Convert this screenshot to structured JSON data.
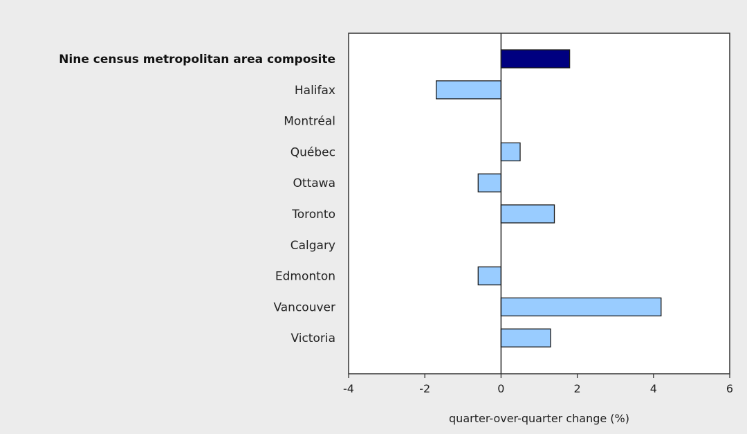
{
  "chart_data": {
    "type": "bar",
    "orientation": "horizontal",
    "categories": [
      "Nine census metropolitan area composite",
      "Halifax",
      "Montréal",
      "Québec",
      "Ottawa",
      "Toronto",
      "Calgary",
      "Edmonton",
      "Vancouver",
      "Victoria"
    ],
    "values": [
      1.8,
      -1.7,
      0.0,
      0.5,
      -0.6,
      1.4,
      0.0,
      -0.6,
      4.2,
      1.3
    ],
    "highlight_index": 0,
    "xlabel": "quarter-over-quarter change (%)",
    "xlim": [
      -4,
      6
    ],
    "xticks": [
      -4,
      -2,
      0,
      2,
      4,
      6
    ],
    "grid": false,
    "colors": {
      "highlight_bar": "#000080",
      "bar": "#99ccff",
      "bar_stroke": "#1a1a1a",
      "plot_background": "#ffffff",
      "page_background": "#ececec"
    }
  }
}
